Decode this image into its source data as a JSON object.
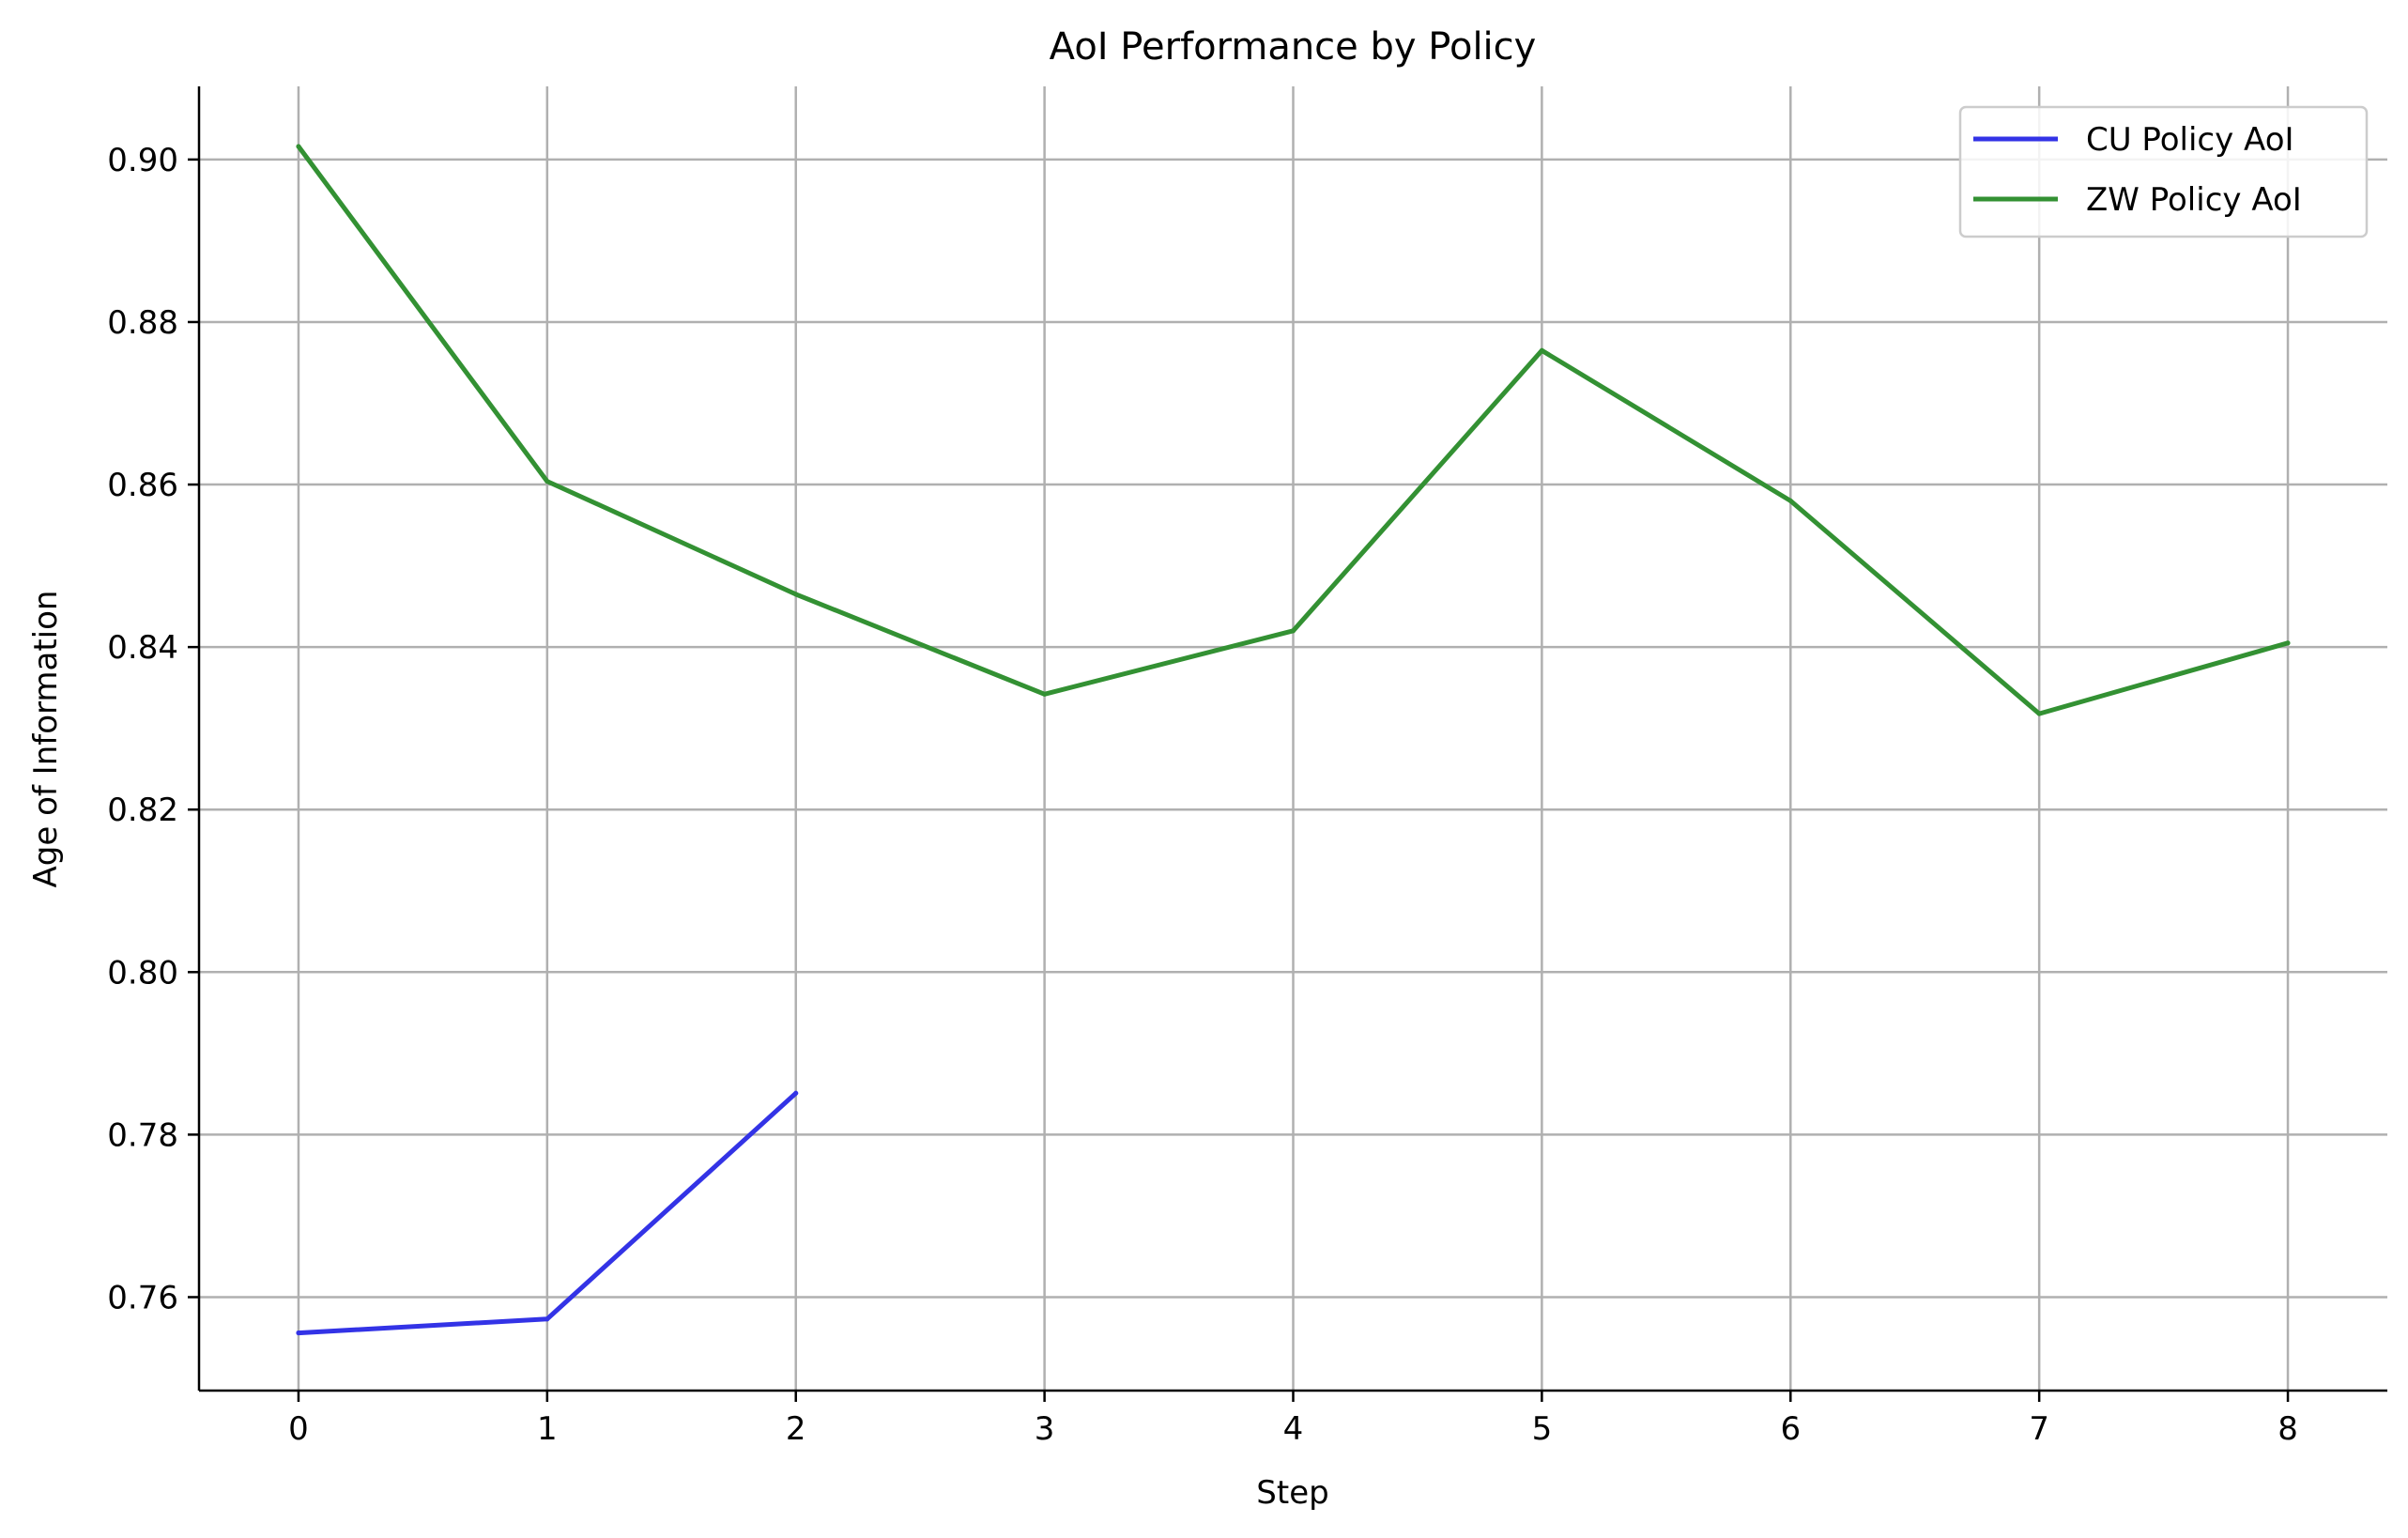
{
  "chart_data": {
    "type": "line",
    "title": "AoI Performance by Policy",
    "xlabel": "Step",
    "ylabel": "Age of Information",
    "xlim": [
      -0.4,
      8.4
    ],
    "ylim": [
      0.7485,
      0.909
    ],
    "x_ticks": [
      0,
      1,
      2,
      3,
      4,
      5,
      6,
      7,
      8
    ],
    "x_tick_labels": [
      "0",
      "1",
      "2",
      "3",
      "4",
      "5",
      "6",
      "7",
      "8"
    ],
    "y_ticks": [
      0.76,
      0.78,
      0.8,
      0.82,
      0.84,
      0.86,
      0.88,
      0.9
    ],
    "y_tick_labels": [
      "0.76",
      "0.78",
      "0.80",
      "0.82",
      "0.84",
      "0.86",
      "0.88",
      "0.90"
    ],
    "grid": true,
    "legend_position": "top-right",
    "series": [
      {
        "name": "CU Policy AoI",
        "color": "#3333e6",
        "x": [
          0,
          1,
          2
        ],
        "values": [
          0.7556,
          0.7573,
          0.7851
        ]
      },
      {
        "name": "ZW Policy AoI",
        "color": "#339133",
        "x": [
          0,
          1,
          2,
          3,
          4,
          5,
          6,
          7,
          8
        ],
        "values": [
          0.9016,
          0.8604,
          0.8465,
          0.8342,
          0.842,
          0.8765,
          0.858,
          0.8318,
          0.8405
        ]
      }
    ]
  }
}
